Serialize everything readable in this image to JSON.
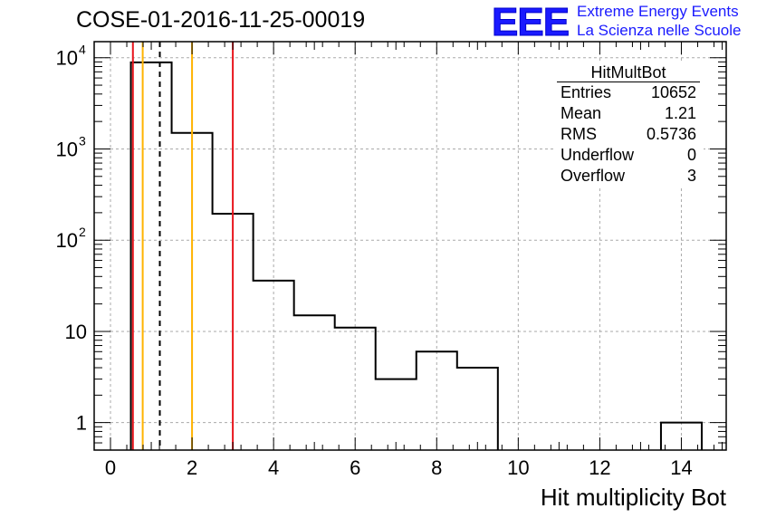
{
  "header": {
    "title": "COSE-01-2016-11-25-00019",
    "logo_text": "EEE",
    "org_line1": "Extreme Energy Events",
    "org_line2": "La Scienza nelle Scuole"
  },
  "stats": {
    "name": "HitMultBot",
    "rows": [
      {
        "label": "Entries",
        "value": "10652"
      },
      {
        "label": "Mean",
        "value": "1.21"
      },
      {
        "label": "RMS",
        "value": "0.5736"
      },
      {
        "label": "Underflow",
        "value": "0"
      },
      {
        "label": "Overflow",
        "value": "3"
      }
    ]
  },
  "chart_data": {
    "type": "bar",
    "histogram": true,
    "xlabel": "Hit multiplicity Bot",
    "ylabel": "",
    "xlim": [
      -0.4,
      15.1
    ],
    "ylim": [
      0.5,
      15000
    ],
    "ylog": true,
    "grid": true,
    "x_ticks": [
      0,
      2,
      4,
      6,
      8,
      10,
      12,
      14
    ],
    "y_ticks": [
      {
        "value": 1,
        "label": "1"
      },
      {
        "value": 10,
        "label": "10"
      },
      {
        "value": 100,
        "label": "10",
        "exp": "2"
      },
      {
        "value": 1000,
        "label": "10",
        "exp": "3"
      },
      {
        "value": 10000,
        "label": "10",
        "exp": "4"
      }
    ],
    "bins": [
      {
        "x0": 0.5,
        "x1": 1.5,
        "count": 8900
      },
      {
        "x0": 1.5,
        "x1": 2.5,
        "count": 1500
      },
      {
        "x0": 2.5,
        "x1": 3.5,
        "count": 195
      },
      {
        "x0": 3.5,
        "x1": 4.5,
        "count": 36
      },
      {
        "x0": 4.5,
        "x1": 5.5,
        "count": 15
      },
      {
        "x0": 5.5,
        "x1": 6.5,
        "count": 11
      },
      {
        "x0": 6.5,
        "x1": 7.5,
        "count": 3
      },
      {
        "x0": 7.5,
        "x1": 8.5,
        "count": 6
      },
      {
        "x0": 8.5,
        "x1": 9.5,
        "count": 4
      },
      {
        "x0": 13.5,
        "x1": 14.5,
        "count": 1
      }
    ],
    "vertical_lines": [
      {
        "x": 0.55,
        "color": "#e8141c",
        "style": "solid"
      },
      {
        "x": 0.79,
        "color": "#ffb300",
        "style": "solid"
      },
      {
        "x": 1.21,
        "color": "#000000",
        "style": "dashed"
      },
      {
        "x": 2.0,
        "color": "#ffb300",
        "style": "solid"
      },
      {
        "x": 3.0,
        "color": "#e8141c",
        "style": "solid"
      }
    ]
  }
}
